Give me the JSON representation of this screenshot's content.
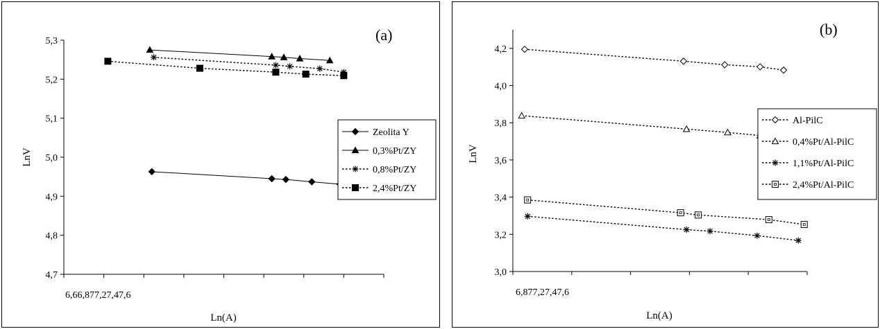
{
  "chart_data": [
    {
      "type": "line",
      "panel_label": "(a)",
      "xlabel": "Ln(A)",
      "ylabel": "LnV",
      "x_tick_labels_text": "6,66,877,27,47,6",
      "xlim": [
        6.6,
        8.2
      ],
      "ylim": [
        4.7,
        5.3
      ],
      "yticks": [
        "4,7",
        "4,8",
        "4,9",
        "5,0",
        "5,1",
        "5,2",
        "5,3"
      ],
      "legend_position": "right",
      "series": [
        {
          "name": "Zeolita Y",
          "style": "solid",
          "marker": "diamond-filled",
          "x": [
            7.04,
            7.64,
            7.71,
            7.84,
            7.98
          ],
          "y": [
            4.963,
            4.945,
            4.943,
            4.937,
            4.931
          ]
        },
        {
          "name": "0,3%Pt/ZY",
          "style": "solid",
          "marker": "triangle-filled",
          "x": [
            7.03,
            7.64,
            7.7,
            7.78,
            7.93
          ],
          "y": [
            5.275,
            5.258,
            5.256,
            5.253,
            5.248
          ]
        },
        {
          "name": "0,8%Pt/ZY",
          "style": "dotted",
          "marker": "star",
          "x": [
            7.05,
            7.66,
            7.73,
            7.88,
            8.0
          ],
          "y": [
            5.256,
            5.236,
            5.233,
            5.227,
            5.218
          ]
        },
        {
          "name": "2,4%Pt/ZY",
          "style": "dotted",
          "marker": "square-filled",
          "x": [
            6.82,
            7.28,
            7.66,
            7.81,
            8.0
          ],
          "y": [
            5.246,
            5.228,
            5.218,
            5.213,
            5.209
          ]
        }
      ]
    },
    {
      "type": "line",
      "panel_label": "(b)",
      "xlabel": "Ln(A)",
      "ylabel": "LnV",
      "x_tick_labels_text": "6,877,27,47,6",
      "xlim": [
        6.8,
        7.8
      ],
      "ylim": [
        3.0,
        4.3
      ],
      "yticks": [
        "3,0",
        "3,2",
        "3,4",
        "3,6",
        "3,8",
        "4,0",
        "4,2"
      ],
      "legend_position": "right",
      "series": [
        {
          "name": "Al-PilC",
          "style": "dotted",
          "marker": "diamond-open",
          "x": [
            6.84,
            7.38,
            7.52,
            7.64,
            7.72
          ],
          "y": [
            4.195,
            4.131,
            4.112,
            4.101,
            4.083
          ]
        },
        {
          "name": "0,4%Pt/Al-PilC",
          "style": "dotted",
          "marker": "triangle-open",
          "x": [
            6.83,
            7.39,
            7.53,
            7.64,
            7.72
          ],
          "y": [
            3.838,
            3.766,
            3.748,
            3.731,
            3.712
          ]
        },
        {
          "name": "1,1%Pt/Al-PilC",
          "style": "dotted",
          "marker": "star",
          "x": [
            6.85,
            7.39,
            7.47,
            7.63,
            7.77
          ],
          "y": [
            3.297,
            3.225,
            3.217,
            3.193,
            3.167
          ]
        },
        {
          "name": "2,4%Pt/Al-PilC",
          "style": "dotted",
          "marker": "square-open",
          "x": [
            6.85,
            7.37,
            7.43,
            7.67,
            7.79
          ],
          "y": [
            3.385,
            3.316,
            3.304,
            3.279,
            3.253
          ]
        }
      ]
    }
  ]
}
